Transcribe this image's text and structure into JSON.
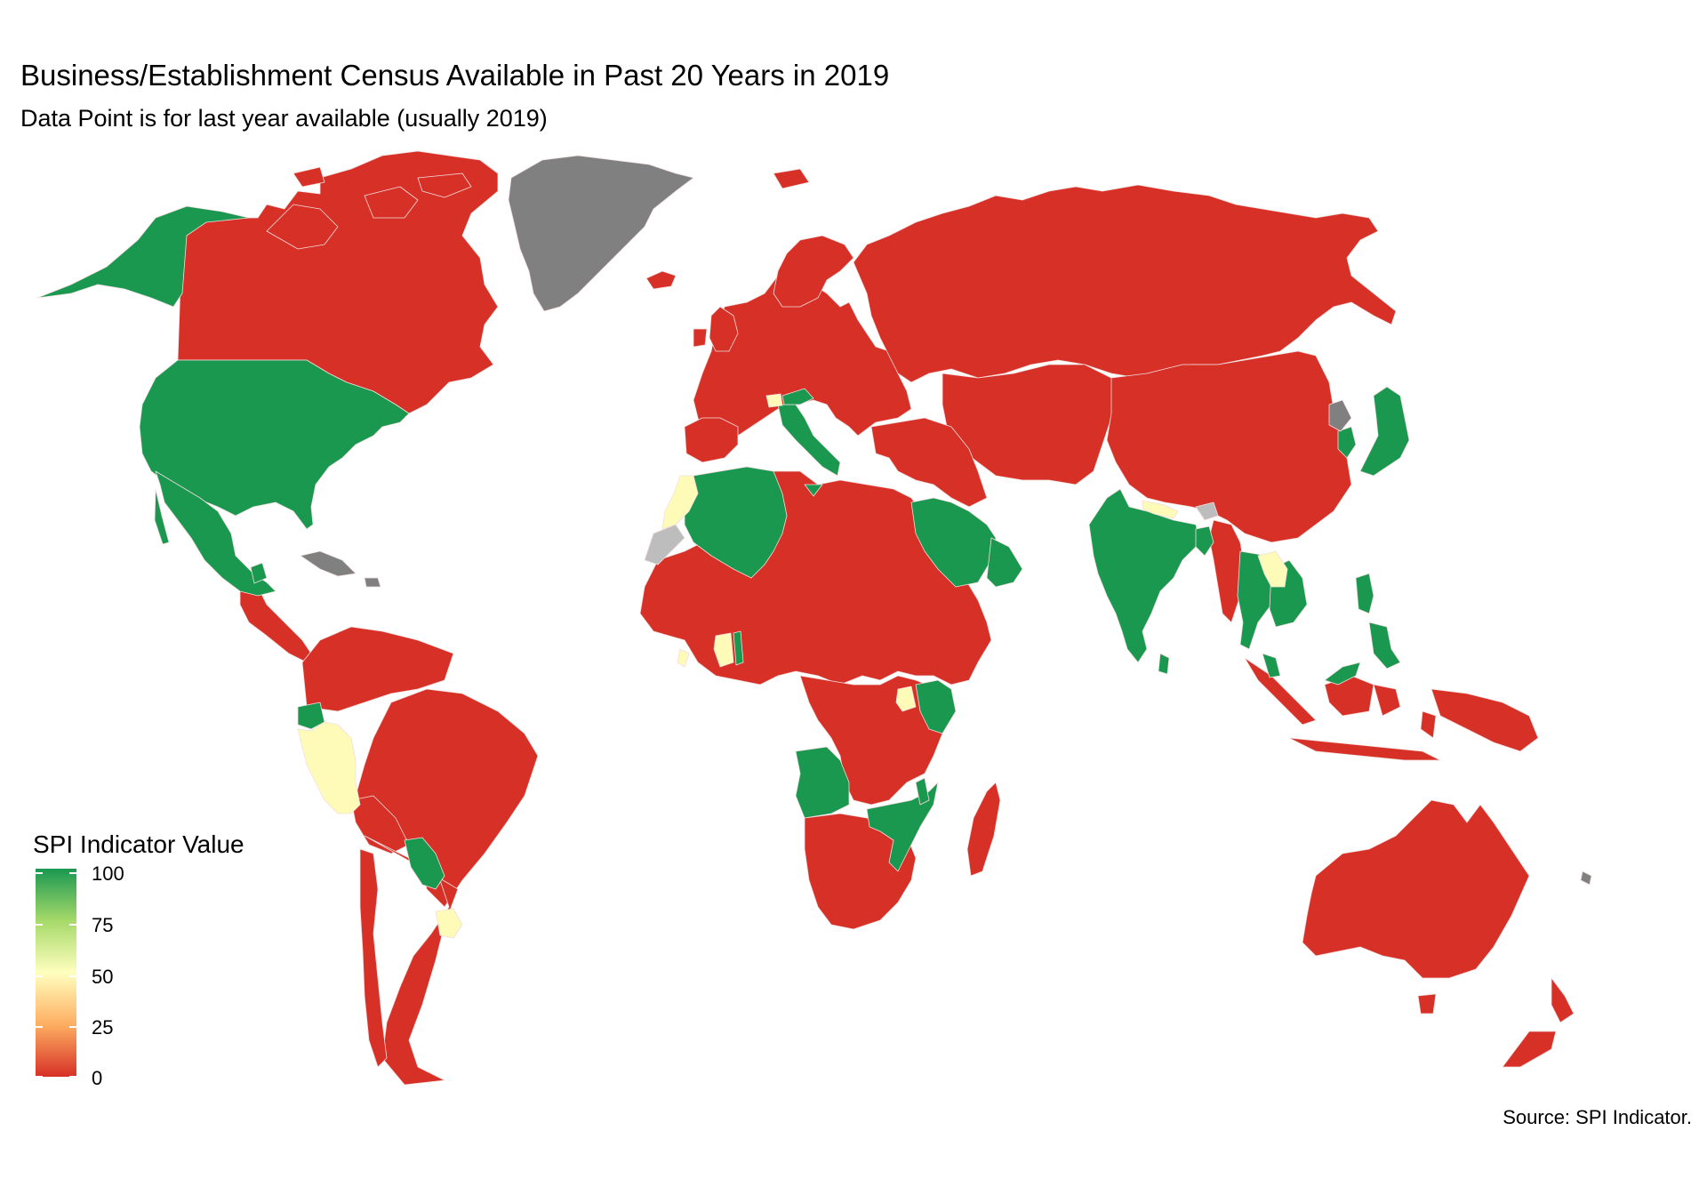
{
  "title": "Business/Establishment Census Available in Past 20 Years in 2019",
  "subtitle": "Data Point is for last year available (usually 2019)",
  "source": "Source: SPI Indicator.",
  "legend": {
    "title": "SPI Indicator Value",
    "ticks": [
      "100",
      "75",
      "50",
      "25",
      "0"
    ],
    "colors": {
      "high": "#1a9850",
      "mid_high": "#a6d96a",
      "mid": "#ffffbf",
      "mid_low": "#fdae61",
      "low": "#d73027"
    }
  },
  "map_colors": {
    "value_100": "#1a9850",
    "value_50": "#fefbb8",
    "value_0": "#d73027",
    "no_data": "#808080",
    "no_data_light": "#bdbdbd",
    "border": "#f2dede"
  },
  "map_regions": [
    {
      "name": "Canada",
      "value": 0
    },
    {
      "name": "United States",
      "value": 100
    },
    {
      "name": "Alaska",
      "value": 100
    },
    {
      "name": "Mexico",
      "value": 100
    },
    {
      "name": "Guatemala",
      "value": 100
    },
    {
      "name": "Central America",
      "value": 0
    },
    {
      "name": "Greenland",
      "value": null
    },
    {
      "name": "Cuba",
      "value": null
    },
    {
      "name": "Colombia",
      "value": 0
    },
    {
      "name": "Venezuela",
      "value": 0
    },
    {
      "name": "Ecuador",
      "value": 100
    },
    {
      "name": "Peru",
      "value": 50
    },
    {
      "name": "Brazil",
      "value": 0
    },
    {
      "name": "Bolivia",
      "value": 0
    },
    {
      "name": "Paraguay",
      "value": 100
    },
    {
      "name": "Uruguay",
      "value": 50
    },
    {
      "name": "Argentina",
      "value": 0
    },
    {
      "name": "Chile",
      "value": 0
    },
    {
      "name": "Iceland",
      "value": 0
    },
    {
      "name": "Europe",
      "value": 0
    },
    {
      "name": "Italy",
      "value": 100
    },
    {
      "name": "Austria",
      "value": 100
    },
    {
      "name": "Switzerland",
      "value": 50
    },
    {
      "name": "Russia",
      "value": 0
    },
    {
      "name": "China",
      "value": 0
    },
    {
      "name": "North Korea",
      "value": null
    },
    {
      "name": "South Korea",
      "value": 100
    },
    {
      "name": "Japan",
      "value": 100
    },
    {
      "name": "Central Asia",
      "value": 0
    },
    {
      "name": "Middle East",
      "value": 0
    },
    {
      "name": "Saudi Arabia",
      "value": 100
    },
    {
      "name": "Oman",
      "value": 100
    },
    {
      "name": "India",
      "value": 100
    },
    {
      "name": "Nepal",
      "value": 50
    },
    {
      "name": "Bhutan",
      "value": null
    },
    {
      "name": "Bangladesh",
      "value": 100
    },
    {
      "name": "Myanmar",
      "value": 0
    },
    {
      "name": "Thailand",
      "value": 100
    },
    {
      "name": "Laos",
      "value": 50
    },
    {
      "name": "Cambodia",
      "value": 100
    },
    {
      "name": "Vietnam",
      "value": 100
    },
    {
      "name": "Philippines",
      "value": 100
    },
    {
      "name": "Malaysia",
      "value": 100
    },
    {
      "name": "Indonesia",
      "value": 0
    },
    {
      "name": "Papua New Guinea",
      "value": 0
    },
    {
      "name": "Australia",
      "value": 0
    },
    {
      "name": "New Zealand",
      "value": 0
    },
    {
      "name": "Morocco",
      "value": 50
    },
    {
      "name": "Western Sahara",
      "value": null
    },
    {
      "name": "Algeria",
      "value": 100
    },
    {
      "name": "Africa (other)",
      "value": 0
    },
    {
      "name": "Ghana",
      "value": 50
    },
    {
      "name": "Togo",
      "value": 100
    },
    {
      "name": "Uganda",
      "value": 50
    },
    {
      "name": "Kenya",
      "value": 100
    },
    {
      "name": "Angola",
      "value": 100
    },
    {
      "name": "Zambia",
      "value": 0
    },
    {
      "name": "Zimbabwe",
      "value": 100
    },
    {
      "name": "Mozambique",
      "value": 100
    },
    {
      "name": "Malawi",
      "value": 100
    },
    {
      "name": "Madagascar",
      "value": 0
    },
    {
      "name": "South Africa",
      "value": 0
    }
  ]
}
